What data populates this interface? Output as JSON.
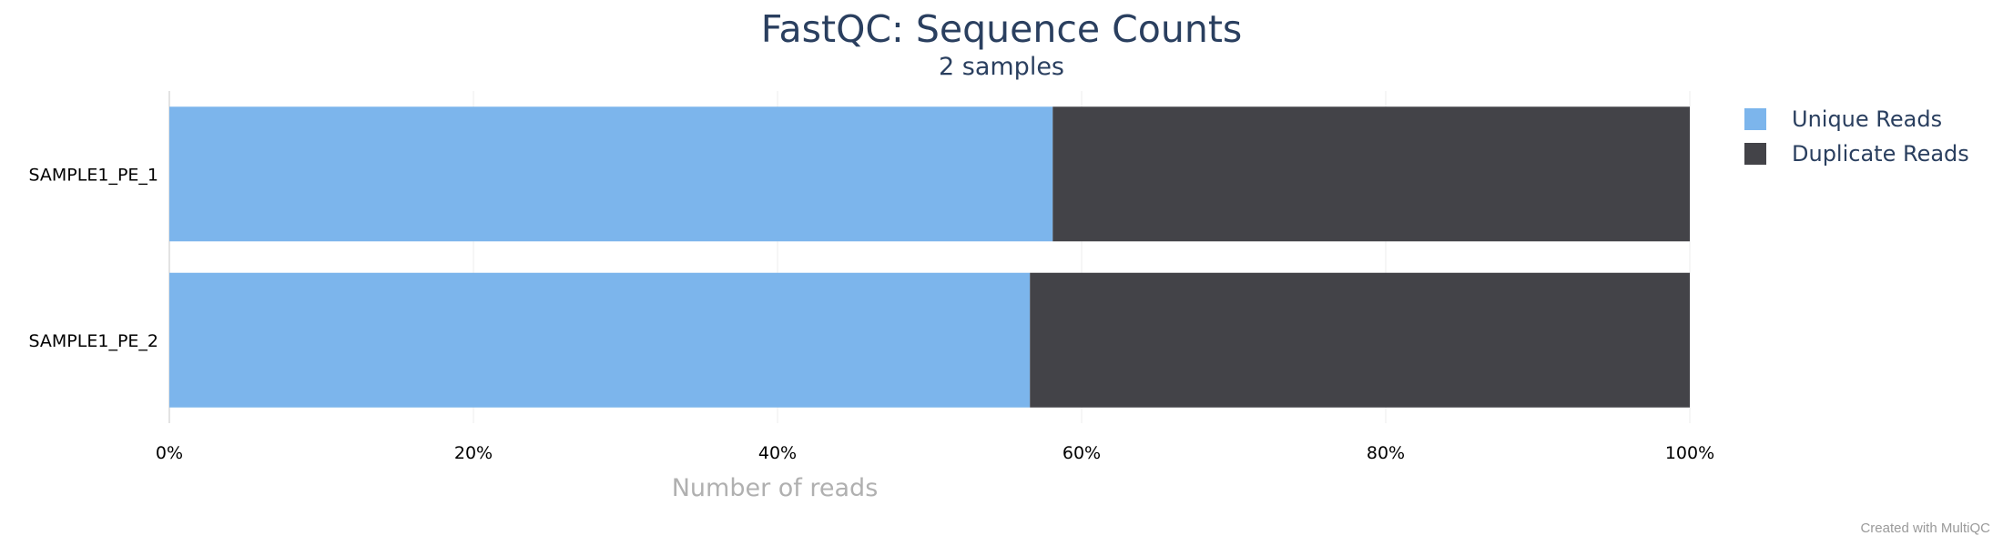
{
  "chart_data": {
    "type": "bar",
    "orientation": "horizontal",
    "stacked": true,
    "percentage": true,
    "title": "FastQC: Sequence Counts",
    "subtitle": "2 samples",
    "xlabel": "Number of reads",
    "ylabel": "",
    "xlim": [
      0,
      100
    ],
    "x_ticks": [
      "0%",
      "20%",
      "40%",
      "60%",
      "80%",
      "100%"
    ],
    "categories": [
      "SAMPLE1_PE_1",
      "SAMPLE1_PE_2"
    ],
    "series": [
      {
        "name": "Unique Reads",
        "color": "#7cb5ec",
        "values": [
          58.1,
          56.6
        ]
      },
      {
        "name": "Duplicate Reads",
        "color": "#434348",
        "values": [
          41.9,
          43.4
        ]
      }
    ],
    "legend_position": "top-right",
    "grid": true
  },
  "footer": {
    "credit": "Created with MultiQC"
  }
}
